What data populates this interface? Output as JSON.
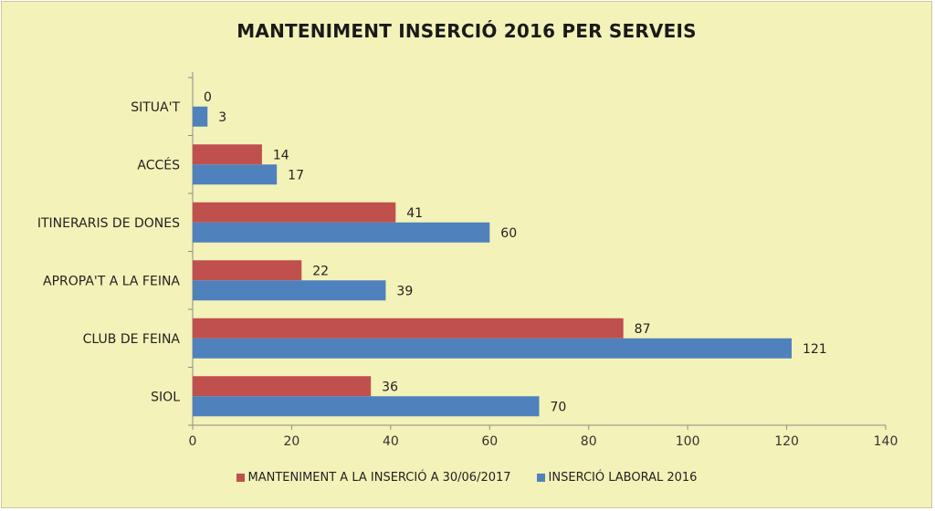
{
  "chart_data": {
    "type": "bar",
    "orientation": "horizontal",
    "title": "MANTENIMENT INSERCIÓ 2016 PER SERVEIS",
    "categories": [
      "SITUA'T",
      "ACCÉS",
      "ITINERARIS DE DONES",
      "APROPA'T A LA FEINA",
      "CLUB DE FEINA",
      "SIOL"
    ],
    "series": [
      {
        "name": "MANTENIMENT  A LA INSERCIÓ A 30/06/2017",
        "values": [
          0,
          14,
          41,
          22,
          87,
          36
        ],
        "color": "#c0504d"
      },
      {
        "name": "INSERCIÓ LABORAL 2016",
        "values": [
          3,
          17,
          60,
          39,
          121,
          70
        ],
        "color": "#4f81bd"
      }
    ],
    "xlim": [
      0,
      140
    ],
    "xticks": [
      "0",
      "20",
      "40",
      "60",
      "80",
      "100",
      "120",
      "140"
    ],
    "legend_position": "bottom",
    "grid": false
  }
}
